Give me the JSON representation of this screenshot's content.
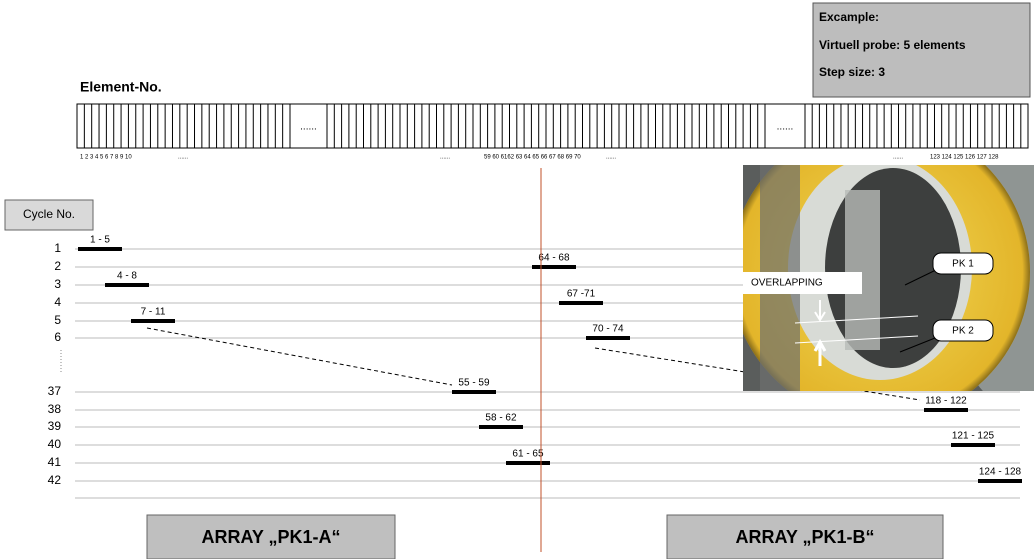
{
  "example": {
    "title": "Excample:",
    "probe": "Virtuell probe: 5 elements",
    "step": "Step size: 3"
  },
  "element_header": "Element-No.",
  "element_strip": {
    "gaps": [
      "......",
      "......"
    ],
    "number_groups": [
      "1 2 3 4 5 6 7 8 9 10",
      "......",
      "......",
      "59 60 6162 63 64 65 66 67 68 69 70",
      "......",
      "......",
      "123 124 125 126 127 128"
    ]
  },
  "cycle_header": "Cycle No.",
  "cycles": [
    "1",
    "2",
    "3",
    "4",
    "5",
    "6",
    "37",
    "38",
    "39",
    "40",
    "41",
    "42"
  ],
  "bars": [
    "1 - 5",
    "64 - 68",
    "4 - 8",
    "67 -71",
    "7 - 11",
    "70 - 74",
    "55 - 59",
    "118 - 122",
    "58 - 62",
    "121 - 125",
    "61 - 65",
    "124 - 128"
  ],
  "photo": {
    "overlap": "OVERLAPPING",
    "pk1": "PK 1",
    "pk2": "PK 2"
  },
  "arrays": [
    "ARRAY „PK1-A“",
    "ARRAY „PK1-B“"
  ]
}
